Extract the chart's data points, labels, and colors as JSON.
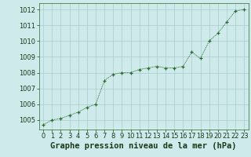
{
  "x": [
    0,
    1,
    2,
    3,
    4,
    5,
    6,
    7,
    8,
    9,
    10,
    11,
    12,
    13,
    14,
    15,
    16,
    17,
    18,
    19,
    20,
    21,
    22,
    23
  ],
  "y": [
    1004.7,
    1005.0,
    1005.1,
    1005.3,
    1005.5,
    1005.8,
    1006.0,
    1007.5,
    1007.9,
    1008.0,
    1008.0,
    1008.2,
    1008.3,
    1008.4,
    1008.3,
    1008.3,
    1008.4,
    1009.3,
    1008.9,
    1010.0,
    1010.5,
    1011.2,
    1011.9,
    1012.0
  ],
  "line_color": "#2d6a2d",
  "marker": "+",
  "bg_color": "#ceeaea",
  "grid_color": "#a8cccc",
  "xlabel": "Graphe pression niveau de la mer (hPa)",
  "xlabel_color": "#1a3a1a",
  "axis_color": "#2d6a2d",
  "tick_color": "#1a3a1a",
  "ylim": [
    1004.4,
    1012.4
  ],
  "yticks": [
    1005,
    1006,
    1007,
    1008,
    1009,
    1010,
    1011,
    1012
  ],
  "xlim": [
    -0.5,
    23.5
  ],
  "xticks": [
    0,
    1,
    2,
    3,
    4,
    5,
    6,
    7,
    8,
    9,
    10,
    11,
    12,
    13,
    14,
    15,
    16,
    17,
    18,
    19,
    20,
    21,
    22,
    23
  ],
  "xlabel_fontsize": 7.5,
  "tick_fontsize": 6
}
